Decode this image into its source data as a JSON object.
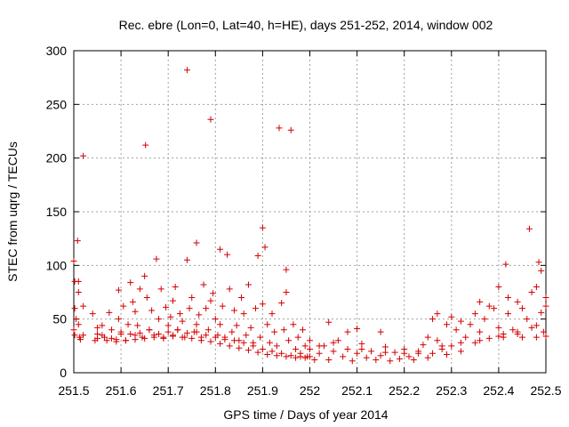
{
  "chart_data": {
    "type": "scatter",
    "title": "Rec. ebre (Lon=0, Lat=40, h=HE), days 251-252, 2014, window 002",
    "xlabel": "GPS time / Days of year 2014",
    "ylabel": "STEC from uqrg / TECUs",
    "xlim": [
      251.5,
      252.5
    ],
    "ylim": [
      0,
      300
    ],
    "x_ticks": [
      251.5,
      251.6,
      251.7,
      251.8,
      251.9,
      252.0,
      252.1,
      252.2,
      252.3,
      252.4,
      252.5
    ],
    "x_tick_labels": [
      "251.5",
      "251.6",
      "251.7",
      "251.8",
      "251.9",
      "252",
      "252.1",
      "252.2",
      "252.3",
      "252.4",
      "252.5"
    ],
    "y_ticks": [
      0,
      50,
      100,
      150,
      200,
      250,
      300
    ],
    "y_tick_labels": [
      "0",
      "50",
      "100",
      "150",
      "200",
      "250",
      "300"
    ],
    "grid": true,
    "marker": "+",
    "color": "#d40000",
    "series": [
      {
        "points": [
          [
            251.5,
            104
          ],
          [
            251.508,
            123
          ],
          [
            251.514,
            31
          ],
          [
            251.52,
            202
          ],
          [
            251.52,
            62
          ],
          [
            251.52,
            35
          ],
          [
            251.502,
            85
          ],
          [
            251.502,
            60
          ],
          [
            251.502,
            35
          ],
          [
            251.51,
            75
          ],
          [
            251.51,
            45
          ],
          [
            251.512,
            33
          ],
          [
            251.505,
            50
          ],
          [
            251.51,
            85
          ],
          [
            251.5,
            40
          ],
          [
            251.54,
            55
          ],
          [
            251.545,
            30
          ],
          [
            251.55,
            36
          ],
          [
            251.56,
            44
          ],
          [
            251.565,
            33
          ],
          [
            251.575,
            56
          ],
          [
            251.58,
            40
          ],
          [
            251.59,
            31
          ],
          [
            251.595,
            77
          ],
          [
            251.595,
            50
          ],
          [
            251.6,
            36
          ],
          [
            251.605,
            62
          ],
          [
            251.61,
            30
          ],
          [
            251.615,
            45
          ],
          [
            251.62,
            84
          ],
          [
            251.625,
            66
          ],
          [
            251.63,
            57
          ],
          [
            251.63,
            35
          ],
          [
            251.635,
            44
          ],
          [
            251.64,
            78
          ],
          [
            251.645,
            33
          ],
          [
            251.65,
            90
          ],
          [
            251.652,
            212
          ],
          [
            251.655,
            70
          ],
          [
            251.66,
            40
          ],
          [
            251.665,
            58
          ],
          [
            251.67,
            35
          ],
          [
            251.675,
            106
          ],
          [
            251.68,
            50
          ],
          [
            251.685,
            78
          ],
          [
            251.69,
            32
          ],
          [
            251.695,
            61
          ],
          [
            251.7,
            44
          ],
          [
            251.705,
            52
          ],
          [
            251.71,
            67
          ],
          [
            251.71,
            35
          ],
          [
            251.715,
            80
          ],
          [
            251.72,
            40
          ],
          [
            251.725,
            55
          ],
          [
            251.73,
            48
          ],
          [
            251.735,
            33
          ],
          [
            251.74,
            282
          ],
          [
            251.74,
            105
          ],
          [
            251.745,
            60
          ],
          [
            251.75,
            70
          ],
          [
            251.755,
            38
          ],
          [
            251.76,
            121
          ],
          [
            251.76,
            45
          ],
          [
            251.765,
            54
          ],
          [
            251.77,
            33
          ],
          [
            251.775,
            82
          ],
          [
            251.78,
            60
          ],
          [
            251.785,
            40
          ],
          [
            251.79,
            236
          ],
          [
            251.79,
            67
          ],
          [
            251.795,
            74
          ],
          [
            251.8,
            50
          ],
          [
            251.805,
            35
          ],
          [
            251.81,
            115
          ],
          [
            251.81,
            45
          ],
          [
            251.815,
            62
          ],
          [
            251.82,
            33
          ],
          [
            251.825,
            110
          ],
          [
            251.83,
            78
          ],
          [
            251.835,
            38
          ],
          [
            251.84,
            58
          ],
          [
            251.845,
            44
          ],
          [
            251.85,
            30
          ],
          [
            251.855,
            70
          ],
          [
            251.86,
            55
          ],
          [
            251.865,
            35
          ],
          [
            251.87,
            82
          ],
          [
            251.875,
            42
          ],
          [
            251.88,
            28
          ],
          [
            251.885,
            60
          ],
          [
            251.89,
            109
          ],
          [
            251.895,
            33
          ],
          [
            251.9,
            64
          ],
          [
            251.9,
            135
          ],
          [
            251.905,
            117
          ],
          [
            251.91,
            45
          ],
          [
            251.915,
            28
          ],
          [
            251.92,
            55
          ],
          [
            251.925,
            38
          ],
          [
            251.93,
            25
          ],
          [
            251.935,
            228
          ],
          [
            251.94,
            65
          ],
          [
            251.945,
            40
          ],
          [
            251.95,
            96
          ],
          [
            251.95,
            75
          ],
          [
            251.955,
            30
          ],
          [
            251.96,
            226
          ],
          [
            251.965,
            45
          ],
          [
            251.97,
            22
          ],
          [
            251.975,
            33
          ],
          [
            251.98,
            18
          ],
          [
            251.985,
            40
          ],
          [
            251.99,
            25
          ],
          [
            251.995,
            15
          ],
          [
            252.0,
            30
          ],
          [
            251.55,
            42
          ],
          [
            251.56,
            35
          ],
          [
            251.58,
            32
          ],
          [
            251.6,
            38
          ],
          [
            251.62,
            36
          ],
          [
            251.64,
            37
          ],
          [
            251.66,
            40
          ],
          [
            251.68,
            36
          ],
          [
            251.7,
            38
          ],
          [
            251.72,
            40
          ],
          [
            251.74,
            37
          ],
          [
            251.76,
            38
          ],
          [
            251.78,
            35
          ],
          [
            251.8,
            33
          ],
          [
            251.82,
            31
          ],
          [
            251.84,
            30
          ],
          [
            251.86,
            28
          ],
          [
            251.88,
            25
          ],
          [
            251.9,
            22
          ],
          [
            251.92,
            20
          ],
          [
            251.94,
            18
          ],
          [
            251.96,
            16
          ],
          [
            251.98,
            15
          ],
          [
            252.0,
            15
          ],
          [
            251.55,
            32
          ],
          [
            251.57,
            30
          ],
          [
            251.59,
            29
          ],
          [
            251.61,
            30
          ],
          [
            251.63,
            31
          ],
          [
            251.65,
            32
          ],
          [
            251.67,
            33
          ],
          [
            251.69,
            33
          ],
          [
            251.71,
            34
          ],
          [
            251.73,
            33
          ],
          [
            251.75,
            32
          ],
          [
            251.77,
            30
          ],
          [
            251.79,
            29
          ],
          [
            251.81,
            27
          ],
          [
            251.83,
            25
          ],
          [
            251.85,
            23
          ],
          [
            251.87,
            21
          ],
          [
            251.89,
            19
          ],
          [
            251.91,
            17
          ],
          [
            251.93,
            16
          ],
          [
            251.95,
            15
          ],
          [
            251.97,
            14
          ],
          [
            251.99,
            14
          ],
          [
            252.0,
            22
          ],
          [
            252.01,
            12
          ],
          [
            252.02,
            18
          ],
          [
            252.03,
            25
          ],
          [
            252.04,
            12
          ],
          [
            252.05,
            20
          ],
          [
            252.06,
            30
          ],
          [
            252.07,
            15
          ],
          [
            252.08,
            22
          ],
          [
            252.09,
            11
          ],
          [
            252.1,
            18
          ],
          [
            252.11,
            27
          ],
          [
            252.12,
            14
          ],
          [
            252.13,
            20
          ],
          [
            252.14,
            12
          ],
          [
            252.15,
            16
          ],
          [
            252.16,
            24
          ],
          [
            252.17,
            11
          ],
          [
            252.18,
            19
          ],
          [
            252.19,
            13
          ],
          [
            252.2,
            22
          ],
          [
            252.21,
            15
          ],
          [
            252.22,
            12
          ],
          [
            252.23,
            20
          ],
          [
            252.24,
            26
          ],
          [
            252.25,
            14
          ],
          [
            252.26,
            18
          ],
          [
            252.27,
            30
          ],
          [
            252.28,
            22
          ],
          [
            252.29,
            17
          ],
          [
            252.3,
            25
          ],
          [
            252.31,
            40
          ],
          [
            252.32,
            20
          ],
          [
            252.33,
            33
          ],
          [
            252.34,
            45
          ],
          [
            252.35,
            28
          ],
          [
            252.36,
            38
          ],
          [
            252.37,
            50
          ],
          [
            252.38,
            32
          ],
          [
            252.39,
            60
          ],
          [
            252.4,
            42
          ],
          [
            252.41,
            36
          ],
          [
            252.415,
            101
          ],
          [
            252.42,
            55
          ],
          [
            252.43,
            40
          ],
          [
            252.44,
            66
          ],
          [
            252.45,
            33
          ],
          [
            252.46,
            50
          ],
          [
            252.465,
            134
          ],
          [
            252.47,
            75
          ],
          [
            252.48,
            44
          ],
          [
            252.485,
            103
          ],
          [
            252.49,
            95
          ],
          [
            252.495,
            38
          ],
          [
            252.5,
            62
          ],
          [
            252.5,
            34
          ],
          [
            252.49,
            56
          ],
          [
            252.47,
            42
          ],
          [
            252.44,
            38
          ],
          [
            252.41,
            33
          ],
          [
            252.04,
            47
          ],
          [
            252.08,
            38
          ],
          [
            252.1,
            41
          ],
          [
            252.15,
            38
          ],
          [
            252.25,
            33
          ],
          [
            252.26,
            50
          ],
          [
            252.27,
            55
          ],
          [
            252.29,
            45
          ],
          [
            252.3,
            52
          ],
          [
            252.32,
            48
          ],
          [
            252.35,
            55
          ],
          [
            252.36,
            66
          ],
          [
            252.38,
            62
          ],
          [
            252.4,
            80
          ],
          [
            252.42,
            70
          ],
          [
            252.45,
            60
          ],
          [
            252.48,
            80
          ],
          [
            252.5,
            70
          ],
          [
            252.02,
            25
          ],
          [
            252.05,
            28
          ],
          [
            252.11,
            22
          ],
          [
            252.16,
            19
          ],
          [
            252.2,
            18
          ],
          [
            252.23,
            18
          ],
          [
            252.28,
            25
          ],
          [
            252.32,
            28
          ],
          [
            252.36,
            30
          ],
          [
            252.4,
            34
          ],
          [
            252.44,
            36
          ],
          [
            252.48,
            33
          ]
        ]
      }
    ]
  }
}
